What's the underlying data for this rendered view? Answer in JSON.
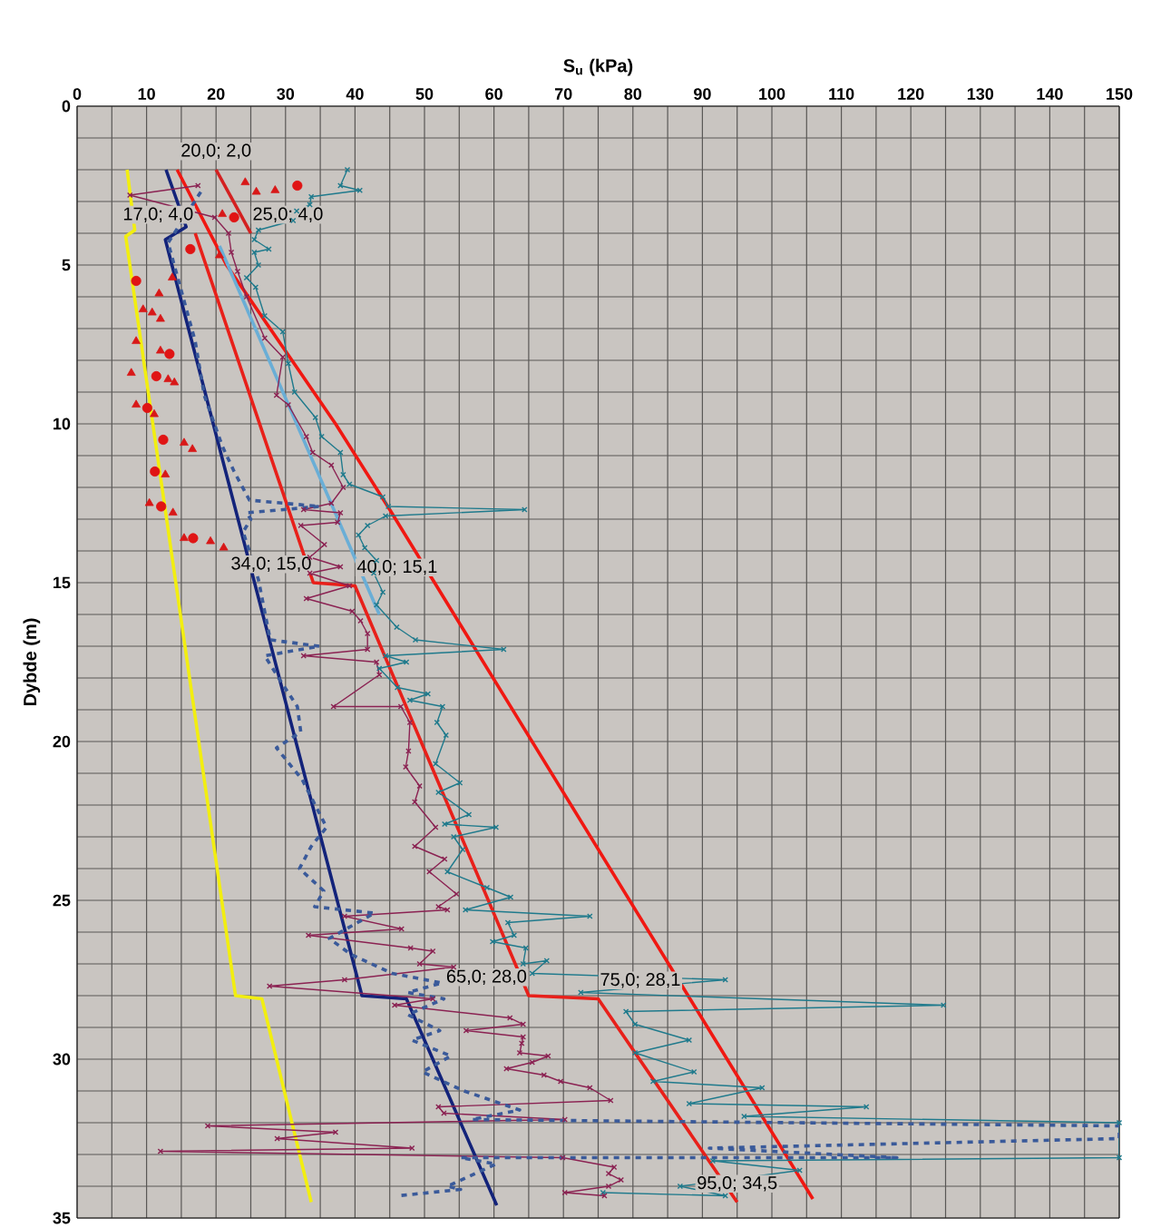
{
  "chart_data": {
    "type": "line",
    "xlabel": "S$_{u}$ (kPa)",
    "ylabel": "Dybde (m)",
    "xlim": [
      0,
      150
    ],
    "ylim": [
      35,
      0
    ],
    "xticks": [
      0,
      {
        "value": 5,
        "label": null
      },
      10,
      {
        "value": 15,
        "label": null
      },
      20,
      {
        "value": 25,
        "label": null
      },
      30,
      {
        "value": 35,
        "label": null
      },
      40,
      {
        "value": 45,
        "label": null
      },
      50,
      {
        "value": 55,
        "label": null
      },
      60,
      {
        "value": 65,
        "label": null
      },
      70,
      {
        "value": 75,
        "label": null
      },
      80,
      {
        "value": 85,
        "label": null
      },
      90,
      {
        "value": 95,
        "label": null
      },
      100,
      {
        "value": 105,
        "label": null
      },
      110,
      {
        "value": 115,
        "label": null
      },
      120,
      {
        "value": 125,
        "label": null
      },
      130,
      {
        "value": 135,
        "label": null
      },
      140,
      {
        "value": 145,
        "label": null
      },
      150
    ],
    "yticks": [
      0,
      {
        "value": 1,
        "label": null
      },
      {
        "value": 2,
        "label": null
      },
      {
        "value": 3,
        "label": null
      },
      {
        "value": 4,
        "label": null
      },
      5,
      {
        "value": 6,
        "label": null
      },
      {
        "value": 7,
        "label": null
      },
      {
        "value": 8,
        "label": null
      },
      {
        "value": 9,
        "label": null
      },
      10,
      {
        "value": 11,
        "label": null
      },
      {
        "value": 12,
        "label": null
      },
      {
        "value": 13,
        "label": null
      },
      {
        "value": 14,
        "label": null
      },
      15,
      {
        "value": 16,
        "label": null
      },
      {
        "value": 17,
        "label": null
      },
      {
        "value": 18,
        "label": null
      },
      {
        "value": 19,
        "label": null
      },
      20,
      {
        "value": 21,
        "label": null
      },
      {
        "value": 22,
        "label": null
      },
      {
        "value": 23,
        "label": null
      },
      {
        "value": 24,
        "label": null
      },
      25,
      {
        "value": 26,
        "label": null
      },
      {
        "value": 27,
        "label": null
      },
      {
        "value": 28,
        "label": null
      },
      {
        "value": 29,
        "label": null
      },
      30,
      {
        "value": 31,
        "label": null
      },
      {
        "value": 32,
        "label": null
      },
      {
        "value": 33,
        "label": null
      },
      {
        "value": 34,
        "label": null
      },
      35
    ],
    "grid": true,
    "series": [
      {
        "color": "#f2ee10",
        "x": [
          7.2,
          8.3,
          7.0,
          22.8,
          26.6,
          33.7
        ],
        "values": [
          2,
          3.9,
          4.1,
          28,
          28.1,
          34.5
        ]
      },
      {
        "color": "#13237a",
        "x": [
          12.8,
          15.7,
          12.7,
          41,
          47.4,
          60.4
        ],
        "values": [
          2,
          3.8,
          4.2,
          28,
          28.1,
          34.6
        ]
      },
      {
        "color": "#d42020",
        "x": [
          20,
          25
        ],
        "values": [
          2,
          4
        ]
      },
      {
        "color": "#e8201a",
        "x": [
          17,
          34,
          40,
          65,
          75,
          95
        ],
        "values": [
          4,
          15,
          15.1,
          28,
          28.1,
          34.5
        ]
      },
      {
        "color": "#f01812",
        "x": [
          14.4,
          21.5,
          37.2,
          45,
          105.9
        ],
        "values": [
          2,
          5,
          10,
          12.7,
          34.4
        ]
      },
      {
        "color": "#6aaed6",
        "x": [
          20.5,
          43.5
        ],
        "values": [
          4.4,
          16
        ]
      },
      {
        "color": "#1f7a8c",
        "marker": "cross",
        "x": [
          38.9,
          37.9,
          40.7,
          33.7,
          33.5,
          31.6,
          31.1,
          26.1,
          25.5,
          27.6,
          25.5,
          26.1,
          24.4,
          25.7,
          27,
          29.6,
          30.4,
          31.3,
          34.3,
          35.2,
          37.9,
          38.3,
          39.2,
          44,
          44.8,
          64.4,
          44.4,
          41.8,
          40.5,
          41.4,
          43.1,
          42.7,
          44,
          43.1,
          46,
          48.7,
          61.4,
          44.4,
          47.4,
          43.5,
          46.1,
          50.5,
          47.9,
          52.6,
          51.8,
          53.1,
          51.6,
          55.1,
          52,
          56.4,
          52.9,
          60.3,
          54.2,
          55.5,
          53.3,
          59,
          62.4,
          55.9,
          73.8,
          62,
          62.9,
          59.8,
          64.6,
          64.2,
          67.6,
          65.5,
          93.3,
          72.5,
          124.7,
          79,
          80.3,
          88.1,
          80.3,
          88.8,
          82.9,
          98.6,
          88.1,
          113.6,
          96,
          150,
          150,
          91.5,
          104,
          86.8,
          93.3,
          75.7
        ],
        "values": [
          2.0,
          2.5,
          2.65,
          2.85,
          3.1,
          3.3,
          3.6,
          3.9,
          4.2,
          4.5,
          4.6,
          5.0,
          5.4,
          5.7,
          6.6,
          7.1,
          8.1,
          9.0,
          9.8,
          10.4,
          10.9,
          11.6,
          11.9,
          12.3,
          12.6,
          12.7,
          12.9,
          13.2,
          13.5,
          13.9,
          14.3,
          14.7,
          15.3,
          15.7,
          16.4,
          16.8,
          17.1,
          17.3,
          17.5,
          17.7,
          18.3,
          18.5,
          18.7,
          18.9,
          19.4,
          19.8,
          20.7,
          21.3,
          21.6,
          22.3,
          22.6,
          22.7,
          23.0,
          23.4,
          24.1,
          24.6,
          24.9,
          25.3,
          25.5,
          25.7,
          26.1,
          26.3,
          26.5,
          27.0,
          26.9,
          27.3,
          27.5,
          27.9,
          28.3,
          28.5,
          28.9,
          29.4,
          29.8,
          30.4,
          30.7,
          30.9,
          31.4,
          31.5,
          31.8,
          32.0,
          33.1,
          33.2,
          33.5,
          34.0,
          34.3,
          34.2
        ]
      },
      {
        "color": "#8b2252",
        "marker": "cross",
        "x": [
          17.4,
          7.6,
          19.8,
          21.8,
          22.2,
          23.1,
          24.4,
          27,
          29.6,
          28.7,
          30.4,
          33,
          33.9,
          36.6,
          38.3,
          36.6,
          32.6,
          37.9,
          37.5,
          32.2,
          35.6,
          33.5,
          37.9,
          33.5,
          39.2,
          33,
          39.6,
          40.8,
          41.8,
          41.8,
          32.6,
          43.1,
          43.5,
          36.9,
          46.6,
          47.9,
          47.7,
          47.3,
          49.3,
          48.6,
          51.6,
          48.6,
          52.9,
          50.7,
          54.6,
          52,
          53.3,
          38.5,
          46.7,
          33.3,
          48,
          51.2,
          49.3,
          54.2,
          38.5,
          27.7,
          51.2,
          45.7,
          62.3,
          64.2,
          56,
          64.2,
          64,
          63.7,
          67.8,
          65.5,
          61.8,
          67.2,
          69.6,
          73.8,
          76.8,
          52,
          52.8,
          70.2,
          18.8,
          37.2,
          28.8,
          48.2,
          12,
          69.9,
          77.3,
          76.5,
          78.3,
          76.5,
          70.2,
          75.9
        ],
        "values": [
          2.5,
          2.8,
          3.5,
          4.0,
          4.6,
          5.2,
          6.0,
          7.3,
          7.9,
          9.1,
          9.4,
          10.4,
          10.9,
          11.3,
          12.0,
          12.5,
          12.7,
          12.8,
          13.1,
          13.2,
          13.8,
          14.2,
          14.5,
          14.7,
          15.1,
          15.5,
          15.9,
          16.2,
          16.6,
          17.1,
          17.3,
          17.5,
          17.9,
          18.9,
          18.9,
          19.4,
          20.3,
          20.8,
          21.4,
          21.9,
          22.7,
          23.3,
          23.7,
          24.1,
          24.8,
          25.2,
          25.3,
          25.5,
          25.9,
          26.1,
          26.5,
          26.6,
          27.0,
          27.1,
          27.5,
          27.7,
          28.1,
          28.3,
          28.7,
          28.9,
          29.1,
          29.3,
          29.5,
          29.8,
          29.9,
          30.1,
          30.3,
          30.5,
          30.7,
          30.9,
          31.3,
          31.5,
          31.7,
          31.9,
          32.1,
          32.3,
          32.5,
          32.8,
          32.9,
          33.1,
          33.4,
          33.6,
          33.8,
          34.0,
          34.2,
          34.3
        ]
      },
      {
        "color": "#3a5a9a",
        "line_style": "dashed",
        "x": [
          17.8,
          13.1,
          17,
          18.3,
          20.9,
          22.6,
          24.8,
          34.9,
          24.4,
          25,
          23.9,
          26.1,
          27.8,
          34.9,
          27,
          29.6,
          31.7,
          32.2,
          28.7,
          32.4,
          35.9,
          33.7,
          32,
          35.5,
          34.2,
          42.8,
          36.3,
          39.4,
          45.4,
          52.5,
          47.6,
          52.8,
          47.6,
          52.2,
          48.2,
          53.8,
          49.7,
          55.7,
          63.7,
          56.8,
          150,
          150,
          91,
          118,
          55.2,
          60.3,
          53.3,
          55.2,
          46.2
        ],
        "values": [
          2.7,
          4.3,
          7.4,
          9.1,
          10.7,
          11.5,
          12.4,
          12.6,
          12.8,
          13.0,
          13.4,
          14.9,
          16.8,
          17.0,
          17.3,
          18.2,
          18.9,
          19.7,
          20.2,
          21.2,
          22.7,
          23.3,
          24.0,
          24.7,
          25.2,
          25.4,
          26.2,
          26.7,
          27.3,
          27.6,
          27.9,
          28.1,
          28.6,
          29.1,
          29.4,
          29.9,
          30.4,
          31.0,
          31.6,
          31.9,
          32.1,
          32.5,
          32.8,
          33.1,
          33.1,
          33.3,
          34.0,
          34.1,
          34.3
        ]
      },
      {
        "type": "scatter",
        "marker": "circle",
        "color": "#e01414",
        "x": [
          31.7,
          22.6,
          16.3,
          8.5,
          13.3,
          11.4,
          10.1,
          12.4,
          11.2,
          12.1,
          16.7
        ],
        "values": [
          2.5,
          3.5,
          4.5,
          5.5,
          7.8,
          8.5,
          9.5,
          10.5,
          11.5,
          12.6,
          13.6
        ]
      },
      {
        "type": "scatter",
        "marker": "triangle",
        "color": "#d81818",
        "x": [
          24.2,
          25.8,
          28.5,
          20.9,
          20.5,
          13.7,
          11.8,
          9.5,
          10.8,
          12,
          8.5,
          12,
          7.8,
          13.1,
          14,
          8.5,
          11.1,
          15.4,
          16.6,
          12.7,
          10.4,
          13.8,
          15.4,
          19.2,
          21.1
        ],
        "values": [
          2.4,
          2.7,
          2.65,
          3.4,
          4.7,
          5.4,
          5.9,
          6.4,
          6.5,
          6.7,
          7.4,
          7.7,
          8.4,
          8.6,
          8.7,
          9.4,
          9.7,
          10.6,
          10.8,
          11.6,
          12.5,
          12.8,
          13.6,
          13.7,
          13.9
        ]
      }
    ],
    "annotations": [
      {
        "text": "20,0; 2,0",
        "x": 20,
        "y": 2
      },
      {
        "text": "17,0; 4,0",
        "x": 17,
        "y": 4
      },
      {
        "text": "25,0; 4,0",
        "x": 25,
        "y": 4
      },
      {
        "text": "34,0; 15,0",
        "x": 34,
        "y": 15
      },
      {
        "text": "40,0; 15,1",
        "x": 40,
        "y": 15.1
      },
      {
        "text": "65,0; 28,0",
        "x": 65,
        "y": 28
      },
      {
        "text": "75,0; 28,1",
        "x": 75,
        "y": 28.1
      },
      {
        "text": "95,0; 34,5",
        "x": 95,
        "y": 34.5
      }
    ]
  }
}
